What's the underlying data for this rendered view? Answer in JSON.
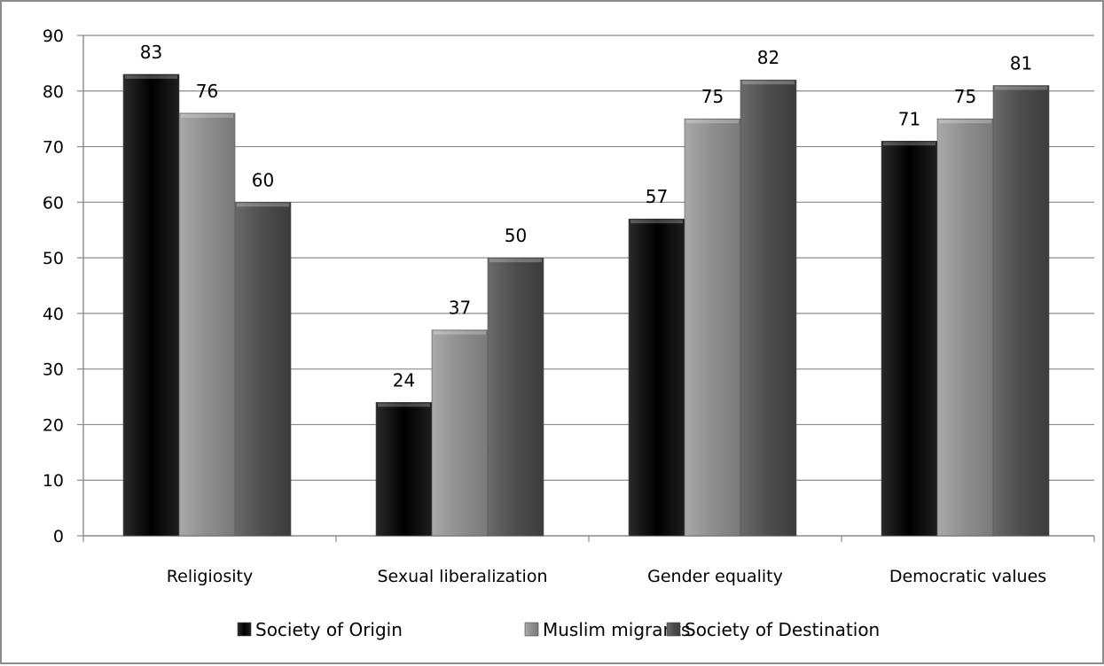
{
  "chart_data": {
    "type": "bar",
    "categories": [
      "Religiosity",
      "Sexual liberalization",
      "Gender equality",
      "Democratic values"
    ],
    "series": [
      {
        "name": "Society of Origin",
        "values": [
          83,
          24,
          57,
          71
        ],
        "labels": [
          "83",
          "24",
          "57",
          "71"
        ],
        "color": "#0d0d0d"
      },
      {
        "name": "Muslim migrants",
        "values": [
          76,
          37,
          75,
          75
        ],
        "labels": [
          "76",
          "37",
          "75",
          "75"
        ],
        "color": "#8c8c8c"
      },
      {
        "name": "Society of Destination",
        "values": [
          60,
          50,
          82,
          81
        ],
        "labels": [
          "60",
          "50",
          "82",
          "81"
        ],
        "color": "#4d4d4d"
      }
    ],
    "yticks": [
      "0",
      "10",
      "20",
      "30",
      "40",
      "50",
      "60",
      "70",
      "80",
      "90"
    ],
    "ylim": [
      0,
      90
    ],
    "grid": true,
    "legend_position": "bottom"
  }
}
